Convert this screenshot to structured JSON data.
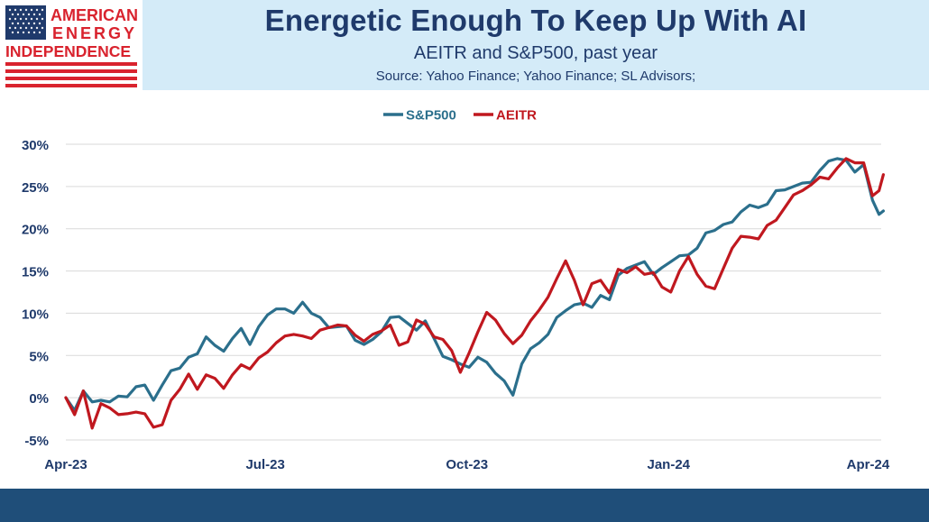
{
  "header": {
    "logo_line1": "AMERICAN",
    "logo_line2": "ENERGY",
    "logo_line3": "INDEPENDENCE",
    "title": "Energetic Enough To Keep Up With AI",
    "subtitle": "AEITR and S&P500, past year",
    "source": "Source: Yahoo Finance; Yahoo Finance; SL Advisors;"
  },
  "colors": {
    "sp500": "#2b6f8c",
    "aeitr": "#c0181f",
    "title": "#1f3a6b",
    "footer": "#1f4e79"
  },
  "chart_data": {
    "type": "line",
    "title": "",
    "xlabel": "",
    "ylabel": "",
    "ylim": [
      -5,
      30
    ],
    "y_ticks": [
      "-5%",
      "0%",
      "5%",
      "10%",
      "15%",
      "20%",
      "25%",
      "30%"
    ],
    "y_tick_values": [
      -5,
      0,
      5,
      10,
      15,
      20,
      25,
      30
    ],
    "x_ticks": [
      "Apr-23",
      "Jul-23",
      "Oct-23",
      "Jan-24",
      "Apr-24"
    ],
    "x_tick_days": [
      0,
      91,
      183,
      275,
      366
    ],
    "x_range_days": [
      0,
      372
    ],
    "grid": true,
    "legend": "top-center",
    "series": [
      {
        "name": "S&P500",
        "points": [
          [
            0,
            0
          ],
          [
            4,
            -1.5
          ],
          [
            8,
            0.8
          ],
          [
            12,
            -0.5
          ],
          [
            16,
            -0.3
          ],
          [
            20,
            -0.5
          ],
          [
            24,
            0.2
          ],
          [
            28,
            0.1
          ],
          [
            32,
            1.3
          ],
          [
            36,
            1.5
          ],
          [
            40,
            -0.3
          ],
          [
            44,
            1.5
          ],
          [
            48,
            3.2
          ],
          [
            52,
            3.5
          ],
          [
            56,
            4.8
          ],
          [
            60,
            5.2
          ],
          [
            64,
            7.2
          ],
          [
            68,
            6.2
          ],
          [
            72,
            5.5
          ],
          [
            76,
            7
          ],
          [
            80,
            8.2
          ],
          [
            84,
            6.3
          ],
          [
            88,
            8.4
          ],
          [
            92,
            9.8
          ],
          [
            96,
            10.5
          ],
          [
            100,
            10.5
          ],
          [
            104,
            10
          ],
          [
            108,
            11.3
          ],
          [
            112,
            10
          ],
          [
            116,
            9.5
          ],
          [
            120,
            8.3
          ],
          [
            124,
            8.4
          ],
          [
            128,
            8.5
          ],
          [
            132,
            6.8
          ],
          [
            136,
            6.3
          ],
          [
            140,
            6.9
          ],
          [
            144,
            7.8
          ],
          [
            148,
            9.5
          ],
          [
            152,
            9.6
          ],
          [
            156,
            8.8
          ],
          [
            160,
            8
          ],
          [
            164,
            9.1
          ],
          [
            168,
            7
          ],
          [
            172,
            4.9
          ],
          [
            176,
            4.5
          ],
          [
            180,
            4
          ],
          [
            184,
            3.6
          ],
          [
            188,
            4.8
          ],
          [
            192,
            4.2
          ],
          [
            196,
            2.9
          ],
          [
            200,
            2
          ],
          [
            204,
            0.3
          ],
          [
            208,
            4
          ],
          [
            212,
            5.8
          ],
          [
            216,
            6.5
          ],
          [
            220,
            7.5
          ],
          [
            224,
            9.5
          ],
          [
            228,
            10.3
          ],
          [
            232,
            11
          ],
          [
            236,
            11.2
          ],
          [
            240,
            10.7
          ],
          [
            244,
            12.1
          ],
          [
            248,
            11.6
          ],
          [
            252,
            14.5
          ],
          [
            256,
            15.3
          ],
          [
            260,
            15.7
          ],
          [
            264,
            16.1
          ],
          [
            268,
            14.6
          ],
          [
            272,
            15.4
          ],
          [
            276,
            16.1
          ],
          [
            280,
            16.8
          ],
          [
            284,
            16.9
          ],
          [
            288,
            17.7
          ],
          [
            292,
            19.5
          ],
          [
            296,
            19.8
          ],
          [
            300,
            20.5
          ],
          [
            304,
            20.8
          ],
          [
            308,
            22
          ],
          [
            312,
            22.8
          ],
          [
            316,
            22.5
          ],
          [
            320,
            22.9
          ],
          [
            324,
            24.5
          ],
          [
            328,
            24.6
          ],
          [
            332,
            25
          ],
          [
            336,
            25.4
          ],
          [
            340,
            25.5
          ],
          [
            344,
            26.9
          ],
          [
            348,
            28
          ],
          [
            352,
            28.3
          ],
          [
            356,
            28.1
          ],
          [
            360,
            26.7
          ],
          [
            364,
            27.6
          ],
          [
            368,
            23.4
          ],
          [
            371,
            21.7
          ],
          [
            373,
            22.1
          ]
        ]
      },
      {
        "name": "AEITR",
        "points": [
          [
            0,
            0
          ],
          [
            4,
            -2
          ],
          [
            8,
            0.8
          ],
          [
            12,
            -3.6
          ],
          [
            16,
            -0.7
          ],
          [
            20,
            -1.2
          ],
          [
            24,
            -2
          ],
          [
            28,
            -1.9
          ],
          [
            32,
            -1.7
          ],
          [
            36,
            -1.9
          ],
          [
            40,
            -3.5
          ],
          [
            44,
            -3.2
          ],
          [
            48,
            -0.3
          ],
          [
            52,
            1
          ],
          [
            56,
            2.8
          ],
          [
            60,
            1
          ],
          [
            64,
            2.7
          ],
          [
            68,
            2.3
          ],
          [
            72,
            1.1
          ],
          [
            76,
            2.7
          ],
          [
            80,
            3.9
          ],
          [
            84,
            3.4
          ],
          [
            88,
            4.7
          ],
          [
            92,
            5.4
          ],
          [
            96,
            6.5
          ],
          [
            100,
            7.3
          ],
          [
            104,
            7.5
          ],
          [
            108,
            7.3
          ],
          [
            112,
            7
          ],
          [
            116,
            8
          ],
          [
            120,
            8.3
          ],
          [
            124,
            8.6
          ],
          [
            128,
            8.5
          ],
          [
            132,
            7.4
          ],
          [
            136,
            6.7
          ],
          [
            140,
            7.5
          ],
          [
            144,
            7.9
          ],
          [
            148,
            8.6
          ],
          [
            152,
            6.2
          ],
          [
            156,
            6.6
          ],
          [
            160,
            9.2
          ],
          [
            164,
            8.7
          ],
          [
            168,
            7.2
          ],
          [
            172,
            6.9
          ],
          [
            176,
            5.6
          ],
          [
            180,
            3
          ],
          [
            184,
            5.3
          ],
          [
            188,
            7.8
          ],
          [
            192,
            10.1
          ],
          [
            196,
            9.2
          ],
          [
            200,
            7.6
          ],
          [
            204,
            6.4
          ],
          [
            208,
            7.4
          ],
          [
            212,
            9.1
          ],
          [
            216,
            10.4
          ],
          [
            220,
            11.9
          ],
          [
            224,
            14.1
          ],
          [
            228,
            16.2
          ],
          [
            232,
            13.9
          ],
          [
            236,
            11
          ],
          [
            240,
            13.5
          ],
          [
            244,
            13.9
          ],
          [
            248,
            12.4
          ],
          [
            252,
            15.2
          ],
          [
            256,
            14.8
          ],
          [
            260,
            15.5
          ],
          [
            264,
            14.6
          ],
          [
            268,
            14.8
          ],
          [
            272,
            13.1
          ],
          [
            276,
            12.5
          ],
          [
            280,
            15
          ],
          [
            284,
            16.7
          ],
          [
            288,
            14.6
          ],
          [
            292,
            13.2
          ],
          [
            296,
            12.9
          ],
          [
            300,
            15.3
          ],
          [
            304,
            17.7
          ],
          [
            308,
            19.1
          ],
          [
            312,
            19
          ],
          [
            316,
            18.8
          ],
          [
            320,
            20.4
          ],
          [
            324,
            21
          ],
          [
            328,
            22.5
          ],
          [
            332,
            24
          ],
          [
            336,
            24.5
          ],
          [
            340,
            25.2
          ],
          [
            344,
            26.1
          ],
          [
            348,
            25.9
          ],
          [
            352,
            27.2
          ],
          [
            356,
            28.3
          ],
          [
            360,
            27.8
          ],
          [
            364,
            27.8
          ],
          [
            368,
            23.9
          ],
          [
            371,
            24.5
          ],
          [
            373,
            26.4
          ]
        ]
      }
    ]
  }
}
